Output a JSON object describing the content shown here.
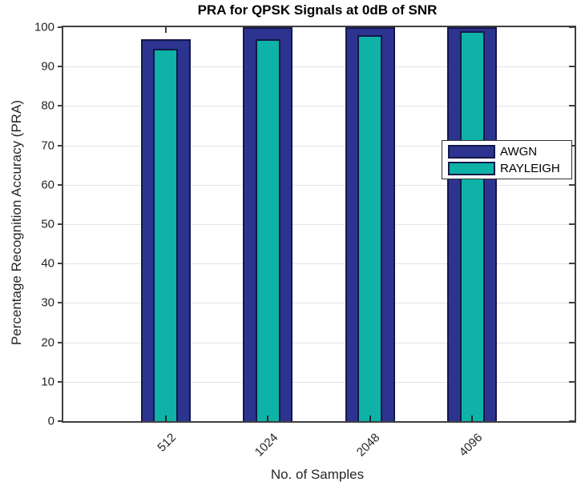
{
  "chart_data": {
    "type": "bar",
    "title": "PRA for QPSK Signals at 0dB of SNR",
    "xlabel": "No. of Samples",
    "ylabel": "Percentage Recognition Accuracy (PRA)",
    "categories": [
      "512",
      "1024",
      "2048",
      "4096"
    ],
    "series": [
      {
        "name": "AWGN",
        "fill": "#2c3490",
        "edge": "#14184a",
        "values": [
          97,
          100,
          100,
          100
        ]
      },
      {
        "name": "RAYLEIGH",
        "fill": "#0eb2a6",
        "edge": "#14184a",
        "values": [
          94.5,
          97,
          98,
          99
        ]
      }
    ],
    "ylim": [
      0,
      100
    ],
    "yticks": [
      0,
      10,
      20,
      30,
      40,
      50,
      60,
      70,
      80,
      90,
      100
    ],
    "grid": "horizontal-only",
    "bar_style": "overlaid-nested",
    "legend_position": "middle-right",
    "colors": {
      "axis": "#3f3f3f",
      "grid": "#e3e3e3",
      "tick_text": "#262626",
      "title_text": "#000000",
      "legend_border": "#333333"
    }
  }
}
